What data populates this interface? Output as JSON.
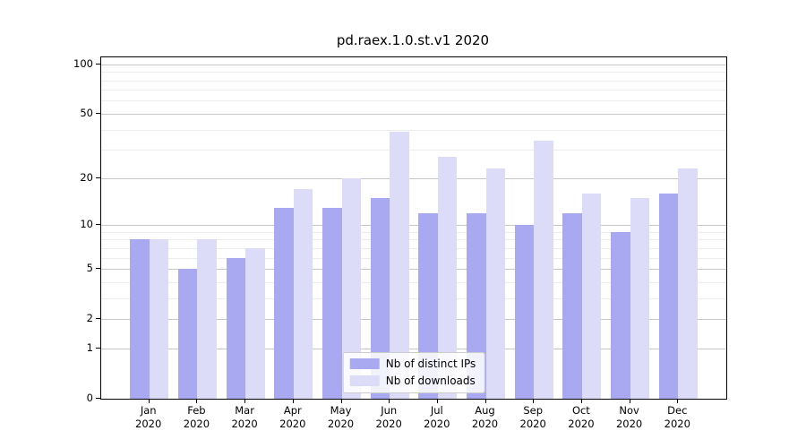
{
  "title": "pd.raex.1.0.st.v1 2020",
  "chart_data": {
    "type": "bar",
    "title": "pd.raex.1.0.st.v1 2020",
    "months": [
      "Jan",
      "Feb",
      "Mar",
      "Apr",
      "May",
      "Jun",
      "Jul",
      "Aug",
      "Sep",
      "Oct",
      "Nov",
      "Dec"
    ],
    "year_label": "2020",
    "series": [
      {
        "name": "Nb of distinct IPs",
        "color": "#a9a9f2",
        "values": [
          8,
          5,
          6,
          13,
          13,
          15,
          12,
          12,
          10,
          12,
          9,
          16
        ]
      },
      {
        "name": "Nb of downloads",
        "color": "#dcdcf9",
        "values": [
          8,
          8,
          7,
          17,
          20,
          39,
          27,
          23,
          34,
          16,
          15,
          23
        ]
      }
    ],
    "y_scale": "log1p",
    "ylim": [
      0,
      110
    ],
    "y_ticks": [
      0,
      1,
      2,
      5,
      10,
      20,
      50,
      100
    ],
    "y_minor_gridlines": [
      3,
      4,
      6,
      7,
      8,
      9,
      30,
      40,
      60,
      70,
      80,
      90
    ],
    "grid": "horizontal",
    "legend_position": "lower center",
    "xlabel": "",
    "ylabel": ""
  }
}
